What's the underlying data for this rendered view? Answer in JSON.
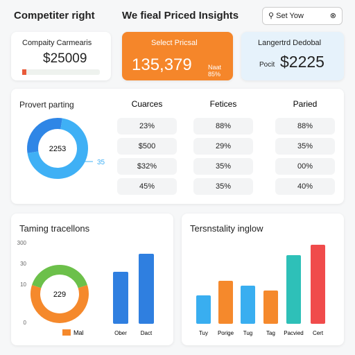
{
  "header": {
    "title": "Competiter right",
    "center_title": "We fieal Priced Insights",
    "search": "Set Yow"
  },
  "cards": [
    {
      "label": "Compaity Carmearis",
      "value": "$25009"
    },
    {
      "label": "Select Pricsal",
      "value": "135,379",
      "note": "Naat 85%"
    },
    {
      "label": "Langertrd Dedobal",
      "prefix": "Pocit",
      "value": "$2225"
    }
  ],
  "overview": {
    "title": "Provert parting",
    "donut": {
      "center": "2253",
      "side_label": "35",
      "values": [
        30,
        70
      ],
      "colors": [
        "#2f86e6",
        "#3fb0f5"
      ]
    },
    "table": {
      "headers": [
        "Cuarces",
        "Fetices",
        "Paried"
      ],
      "rows": [
        [
          "23%",
          "88%",
          "88%"
        ],
        [
          "$500",
          "29%",
          "35%"
        ],
        [
          "$32%",
          "35%",
          "00%"
        ],
        [
          "45%",
          "35%",
          "40%"
        ]
      ]
    }
  },
  "left_chart": {
    "title": "Taming tracellons",
    "y_labels": [
      "300",
      "30",
      "10",
      "0"
    ],
    "donut": {
      "center": "229",
      "values": [
        60,
        40
      ],
      "colors": [
        "#f5892c",
        "#6cc04a"
      ],
      "legend": "Mal"
    },
    "bars": {
      "categories": [
        "Ober",
        "Dact"
      ],
      "values": [
        75,
        101
      ],
      "color": "#2f7fe0"
    }
  },
  "right_chart": {
    "title": "Tersnstality inglow",
    "bars": {
      "categories": [
        "Tuy",
        "Porige",
        "Tug",
        "Tag",
        "Pacvied",
        "Cert"
      ],
      "values": [
        41,
        62,
        55,
        48,
        99,
        114
      ],
      "colors": [
        "#39aef0",
        "#f5892c",
        "#39aef0",
        "#f5892c",
        "#2ec0b8",
        "#f04b4b"
      ]
    }
  }
}
